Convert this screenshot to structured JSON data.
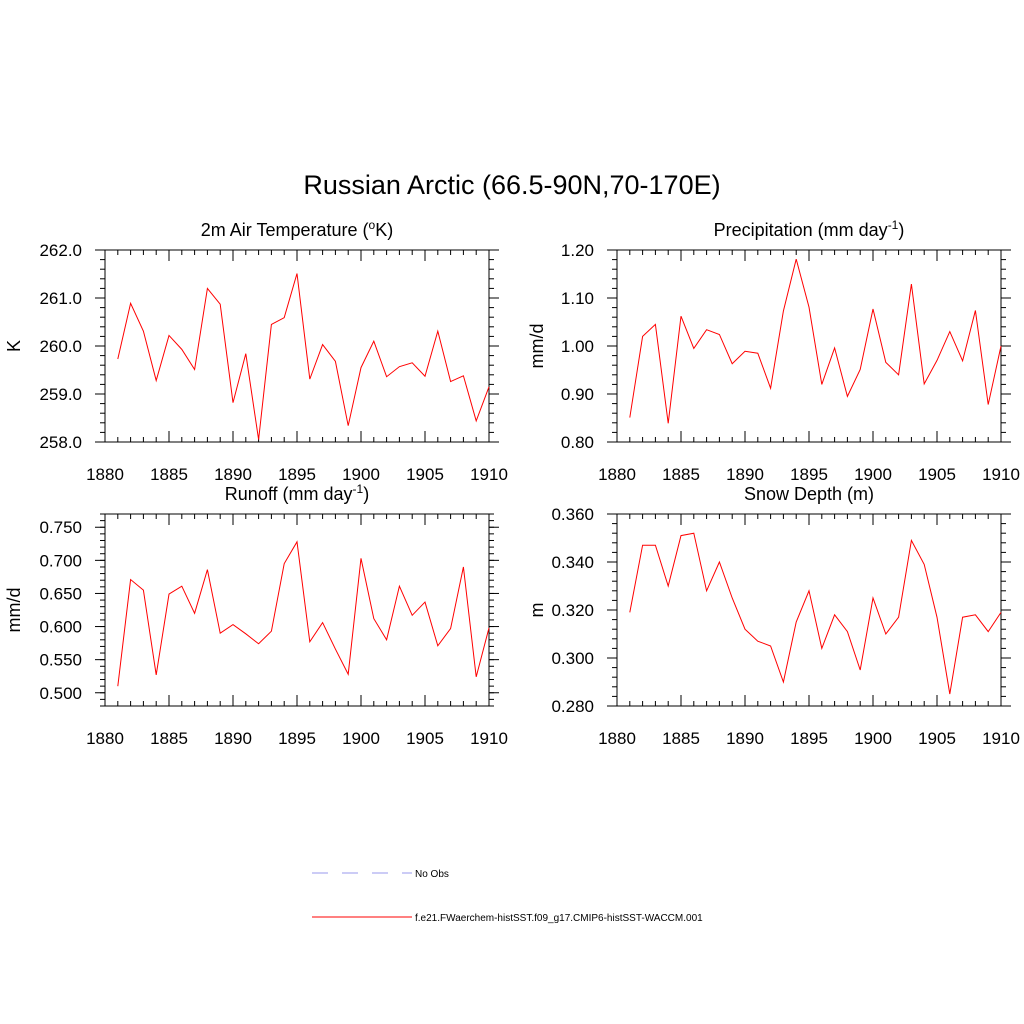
{
  "figure_title": "Russian Arctic (66.5-90N,70-170E)",
  "legend": [
    {
      "label": "No Obs",
      "color": "#9999ee",
      "dash": true
    },
    {
      "label": "f.e21.FWaerchem-histSST.f09_g17.CMIP6-histSST-WACCM.001",
      "color": "#ff0000",
      "dash": false
    }
  ],
  "chart_data": [
    {
      "type": "line",
      "title": "2m Air Temperature (",
      "title_sup": "o",
      "title_suffix": "K)",
      "ylabel": "K",
      "xlim": [
        1880,
        1910
      ],
      "ylim": [
        258.0,
        262.0
      ],
      "xticks": [
        1880,
        1885,
        1890,
        1895,
        1900,
        1905,
        1910
      ],
      "yticks": [
        "258.0",
        "259.0",
        "260.0",
        "261.0",
        "262.0"
      ],
      "x": [
        1881,
        1882,
        1883,
        1884,
        1885,
        1886,
        1887,
        1888,
        1889,
        1890,
        1891,
        1892,
        1893,
        1894,
        1895,
        1896,
        1897,
        1898,
        1899,
        1900,
        1901,
        1902,
        1903,
        1904,
        1905,
        1906,
        1907,
        1908,
        1909,
        1910
      ],
      "series": [
        {
          "color": "#ff0000",
          "values": [
            259.73,
            260.89,
            260.31,
            259.28,
            260.22,
            259.93,
            259.51,
            261.2,
            260.87,
            258.82,
            259.84,
            258.05,
            260.45,
            260.59,
            261.51,
            259.31,
            260.03,
            259.68,
            258.34,
            259.55,
            260.1,
            259.36,
            259.57,
            259.65,
            259.37,
            260.31,
            259.26,
            259.38,
            258.44,
            259.15
          ]
        }
      ]
    },
    {
      "type": "line",
      "title": "Precipitation (mm day",
      "title_sup": "-1",
      "title_suffix": ")",
      "ylabel": "mm/d",
      "xlim": [
        1880,
        1910
      ],
      "ylim": [
        0.8,
        1.2
      ],
      "xticks": [
        1880,
        1885,
        1890,
        1895,
        1900,
        1905,
        1910
      ],
      "yticks": [
        "0.80",
        "0.90",
        "1.00",
        "1.10",
        "1.20"
      ],
      "x": [
        1881,
        1882,
        1883,
        1884,
        1885,
        1886,
        1887,
        1888,
        1889,
        1890,
        1891,
        1892,
        1893,
        1894,
        1895,
        1896,
        1897,
        1898,
        1899,
        1900,
        1901,
        1902,
        1903,
        1904,
        1905,
        1906,
        1907,
        1908,
        1909,
        1910
      ],
      "series": [
        {
          "color": "#ff0000",
          "values": [
            0.851,
            1.02,
            1.045,
            0.839,
            1.062,
            0.995,
            1.034,
            1.024,
            0.963,
            0.989,
            0.985,
            0.912,
            1.073,
            1.181,
            1.081,
            0.92,
            0.996,
            0.895,
            0.951,
            1.077,
            0.966,
            0.94,
            1.129,
            0.921,
            0.97,
            1.03,
            0.969,
            1.074,
            0.878,
            1.0
          ]
        }
      ]
    },
    {
      "type": "line",
      "title": "Runoff (mm day",
      "title_sup": "-1",
      "title_suffix": ")",
      "ylabel": "mm/d",
      "xlim": [
        1880,
        1910
      ],
      "ylim": [
        0.48,
        0.77
      ],
      "xticks": [
        1880,
        1885,
        1890,
        1895,
        1900,
        1905,
        1910
      ],
      "yticks": [
        "0.500",
        "0.550",
        "0.600",
        "0.650",
        "0.700",
        "0.750"
      ],
      "x": [
        1881,
        1882,
        1883,
        1884,
        1885,
        1886,
        1887,
        1888,
        1889,
        1890,
        1891,
        1892,
        1893,
        1894,
        1895,
        1896,
        1897,
        1898,
        1899,
        1900,
        1901,
        1902,
        1903,
        1904,
        1905,
        1906,
        1907,
        1908,
        1909,
        1910
      ],
      "series": [
        {
          "color": "#ff0000",
          "values": [
            0.51,
            0.671,
            0.655,
            0.527,
            0.649,
            0.661,
            0.62,
            0.686,
            0.59,
            0.603,
            0.589,
            0.574,
            0.593,
            0.695,
            0.728,
            0.577,
            0.606,
            0.566,
            0.528,
            0.703,
            0.612,
            0.58,
            0.661,
            0.617,
            0.637,
            0.571,
            0.597,
            0.69,
            0.524,
            0.598
          ]
        }
      ]
    },
    {
      "type": "line",
      "title": "Snow Depth (m)",
      "title_sup": "",
      "title_suffix": "",
      "ylabel": "m",
      "xlim": [
        1880,
        1910
      ],
      "ylim": [
        0.28,
        0.36
      ],
      "xticks": [
        1880,
        1885,
        1890,
        1895,
        1900,
        1905,
        1910
      ],
      "yticks": [
        "0.280",
        "0.300",
        "0.320",
        "0.340",
        "0.360"
      ],
      "x": [
        1881,
        1882,
        1883,
        1884,
        1885,
        1886,
        1887,
        1888,
        1889,
        1890,
        1891,
        1892,
        1893,
        1894,
        1895,
        1896,
        1897,
        1898,
        1899,
        1900,
        1901,
        1902,
        1903,
        1904,
        1905,
        1906,
        1907,
        1908,
        1909,
        1910
      ],
      "series": [
        {
          "color": "#ff0000",
          "values": [
            0.319,
            0.347,
            0.347,
            0.33,
            0.351,
            0.352,
            0.328,
            0.34,
            0.325,
            0.312,
            0.307,
            0.305,
            0.29,
            0.315,
            0.328,
            0.304,
            0.318,
            0.311,
            0.295,
            0.325,
            0.31,
            0.317,
            0.349,
            0.339,
            0.317,
            0.285,
            0.317,
            0.318,
            0.311,
            0.319
          ]
        }
      ]
    }
  ]
}
